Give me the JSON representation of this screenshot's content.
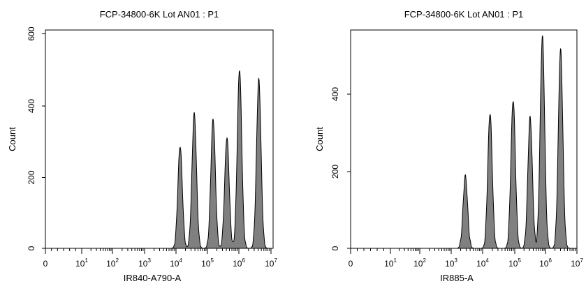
{
  "chart_data": [
    {
      "type": "histogram",
      "title": "FCP-34800-6K Lot AN01 : P1",
      "xlabel": "IR840-A790-A",
      "ylabel": "Count",
      "x_scale": "biexponential",
      "x_ticks": [
        {
          "base": "0",
          "exp": ""
        },
        {
          "base": "10",
          "exp": "1"
        },
        {
          "base": "10",
          "exp": "2"
        },
        {
          "base": "10",
          "exp": "3"
        },
        {
          "base": "10",
          "exp": "4"
        },
        {
          "base": "10",
          "exp": "5"
        },
        {
          "base": "10",
          "exp": "6"
        },
        {
          "base": "10",
          "exp": "7"
        }
      ],
      "y_ticks": [
        "0",
        "200",
        "400",
        "600"
      ],
      "ylim": [
        0,
        640
      ],
      "fill_color": "#808080",
      "peaks": [
        {
          "decade": 4.13,
          "height": 300
        },
        {
          "decade": 4.58,
          "height": 395
        },
        {
          "decade": 5.18,
          "height": 380
        },
        {
          "decade": 5.62,
          "height": 325
        },
        {
          "decade": 6.02,
          "height": 525
        },
        {
          "decade": 6.62,
          "height": 495
        }
      ]
    },
    {
      "type": "histogram",
      "title": "FCP-34800-6K Lot AN01 : P1",
      "xlabel": "IR885-A",
      "ylabel": "Count",
      "x_scale": "biexponential",
      "x_ticks": [
        {
          "base": "0",
          "exp": ""
        },
        {
          "base": "10",
          "exp": "1"
        },
        {
          "base": "10",
          "exp": "2"
        },
        {
          "base": "10",
          "exp": "3"
        },
        {
          "base": "10",
          "exp": "4"
        },
        {
          "base": "10",
          "exp": "5"
        },
        {
          "base": "10",
          "exp": "6"
        },
        {
          "base": "10",
          "exp": "7"
        }
      ],
      "y_ticks": [
        "0",
        "200",
        "400"
      ],
      "ylim": [
        0,
        500
      ],
      "fill_color": "#808080",
      "peaks": [
        {
          "decade": 3.45,
          "height": 165
        },
        {
          "decade": 4.23,
          "height": 310
        },
        {
          "decade": 4.95,
          "height": 340
        },
        {
          "decade": 5.5,
          "height": 300
        },
        {
          "decade": 5.9,
          "height": 485
        },
        {
          "decade": 6.48,
          "height": 455
        }
      ]
    }
  ]
}
